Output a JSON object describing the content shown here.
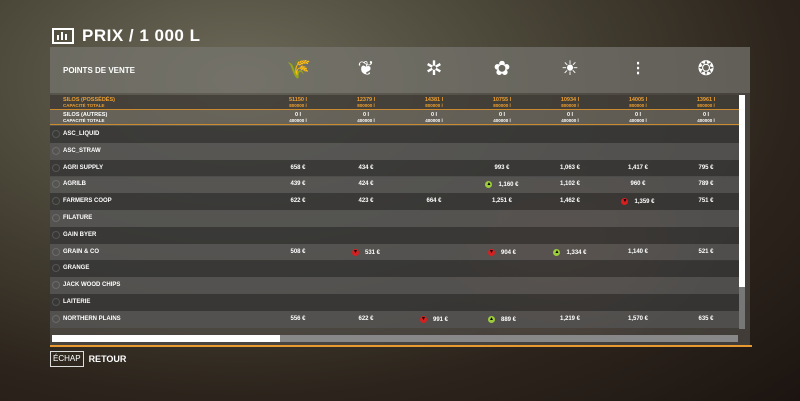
{
  "title": "PRIX / 1 000 L",
  "header_label": "POINTS DE VENTE",
  "columns": [
    {
      "icon": "wheat-icon"
    },
    {
      "icon": "barley-icon"
    },
    {
      "icon": "canola-icon"
    },
    {
      "icon": "cotton-icon"
    },
    {
      "icon": "sunflower-icon"
    },
    {
      "icon": "soybean-icon"
    },
    {
      "icon": "corn-icon"
    }
  ],
  "silos_owned": {
    "label": "SILOS (POSSÉDÉS)",
    "sublabel": "CAPACITÉ TOTALE",
    "values": [
      "51150 l",
      "12379 l",
      "14381 l",
      "10755 l",
      "10934 l",
      "14005 l",
      "13961 l"
    ],
    "capacity": [
      "800000 l",
      "800000 l",
      "800000 l",
      "800000 l",
      "800000 l",
      "800000 l",
      "800000 l"
    ]
  },
  "silos_other": {
    "label": "SILOS (AUTRES)",
    "sublabel": "CAPACITÉ TOTALE",
    "values": [
      "0 l",
      "0 l",
      "0 l",
      "0 l",
      "0 l",
      "0 l",
      "0 l"
    ],
    "capacity": [
      "400000 l",
      "400000 l",
      "400000 l",
      "400000 l",
      "400000 l",
      "400000 l",
      "400000 l"
    ]
  },
  "rows": [
    {
      "name": "ASC_LIQUID",
      "prices": [
        "",
        "",
        "",
        "",
        "",
        "",
        ""
      ]
    },
    {
      "name": "ASC_STRAW",
      "prices": [
        "",
        "",
        "",
        "",
        "",
        "",
        ""
      ]
    },
    {
      "name": "AGRI SUPPLY",
      "prices": [
        "658 €",
        "434 €",
        "",
        "993 €",
        "1,063 €",
        "1,417 €",
        "795 €"
      ]
    },
    {
      "name": "AGRILB",
      "prices": [
        "439 €",
        "424 €",
        "",
        "1,160 €",
        "1,102 €",
        "960 €",
        "789 €"
      ],
      "trend": [
        "",
        "",
        "",
        "up",
        "",
        "",
        ""
      ]
    },
    {
      "name": "FARMERS COOP",
      "prices": [
        "622 €",
        "423 €",
        "664 €",
        "1,251 €",
        "1,462 €",
        "1,359 €",
        "751 €"
      ],
      "trend": [
        "",
        "",
        "",
        "",
        "",
        "down",
        ""
      ]
    },
    {
      "name": "FILATURE",
      "prices": [
        "",
        "",
        "",
        "",
        "",
        "",
        ""
      ]
    },
    {
      "name": "GAIN BYER",
      "prices": [
        "",
        "",
        "",
        "",
        "",
        "",
        ""
      ]
    },
    {
      "name": "GRAIN & CO",
      "prices": [
        "508 €",
        "531 €",
        "",
        "904 €",
        "1,334 €",
        "1,140 €",
        "521 €"
      ],
      "trend": [
        "",
        "down",
        "",
        "down",
        "up",
        "",
        ""
      ]
    },
    {
      "name": "GRANGE",
      "prices": [
        "",
        "",
        "",
        "",
        "",
        "",
        ""
      ]
    },
    {
      "name": "JACK WOOD CHIPS",
      "prices": [
        "",
        "",
        "",
        "",
        "",
        "",
        ""
      ]
    },
    {
      "name": "LAITERIE",
      "prices": [
        "",
        "",
        "",
        "",
        "",
        "",
        ""
      ]
    },
    {
      "name": "NORTHERN PLAINS",
      "prices": [
        "556 €",
        "622 €",
        "991 €",
        "889 €",
        "1,219 €",
        "1,570 €",
        "635 €"
      ],
      "trend": [
        "",
        "",
        "down",
        "up",
        "",
        "",
        ""
      ]
    }
  ],
  "colors": {
    "accent": "#e89a30",
    "up": "#9ccc3c",
    "down": "#d42020"
  },
  "footer": {
    "key": "ÉCHAP",
    "label": "RETOUR"
  }
}
